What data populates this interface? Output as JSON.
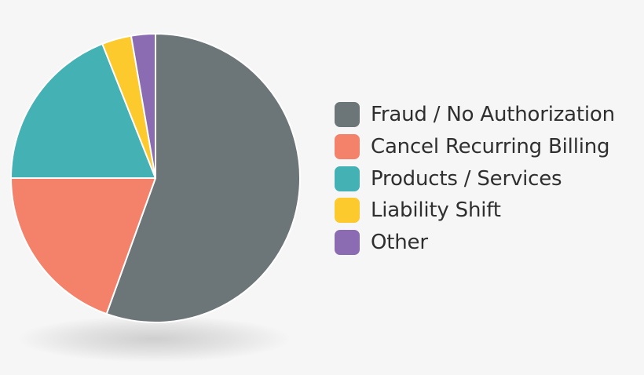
{
  "chart_data": {
    "type": "pie",
    "title": "",
    "legend_position": "right",
    "slices": [
      {
        "label": "Fraud / No Authorization",
        "value": 55.5,
        "color": "#6c7578"
      },
      {
        "label": "Cancel Recurring Billing",
        "value": 19.5,
        "color": "#f4826b"
      },
      {
        "label": "Products / Services",
        "value": 19,
        "color": "#44b1b4"
      },
      {
        "label": "Liability Shift",
        "value": 3.3,
        "color": "#fcca2c"
      },
      {
        "label": "Other",
        "value": 2.7,
        "color": "#8b6bb1"
      }
    ]
  }
}
